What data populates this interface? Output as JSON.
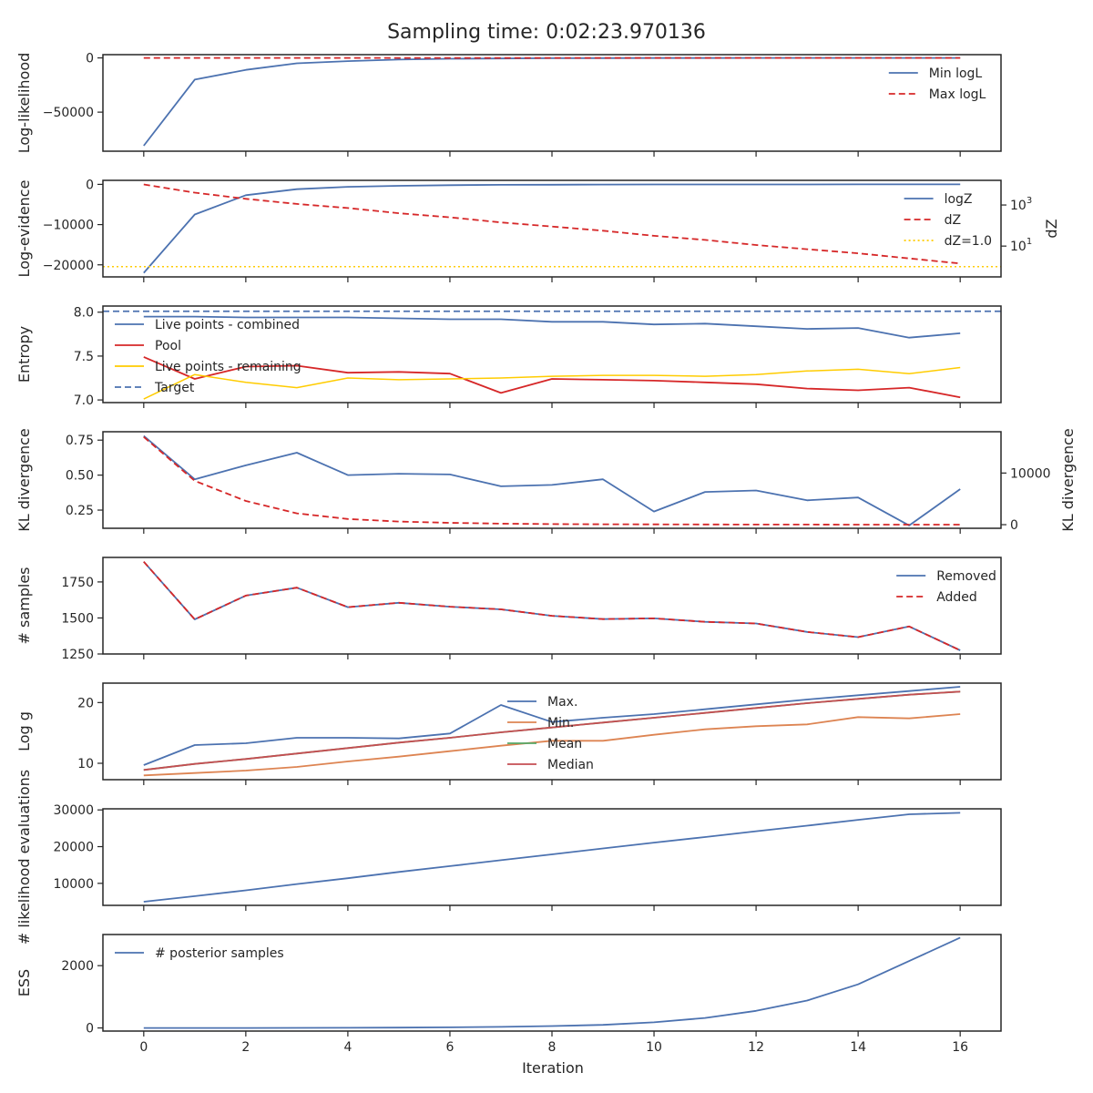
{
  "title": "Sampling time: 0:02:23.970136",
  "xlabel": "Iteration",
  "x_ticks": [
    0,
    2,
    4,
    6,
    8,
    10,
    12,
    14,
    16
  ],
  "colors": {
    "blue": "#4c72b0",
    "red": "#d62728",
    "gold": "#ffcc00",
    "orange": "#dd8452",
    "green": "#55a868",
    "brick": "#c44e52",
    "axis": "#262626"
  },
  "chart_data": [
    {
      "type": "line",
      "ylabel": "Log-likelihood",
      "ylim": [
        -86000,
        3000
      ],
      "yticks": [
        {
          "v": 0,
          "label": "0"
        },
        {
          "v": -50000,
          "label": "−50000"
        }
      ],
      "legend": "top-right",
      "series": [
        {
          "name": "Min logL",
          "color": "blue",
          "dash": "solid",
          "x": [
            0,
            1,
            2,
            3,
            4,
            5,
            6,
            7,
            8,
            9,
            10,
            11,
            12,
            13,
            14,
            15,
            16
          ],
          "values": [
            -81000,
            -20000,
            -11000,
            -5000,
            -3000,
            -1500,
            -800,
            -500,
            -300,
            -200,
            -120,
            -80,
            -50,
            -30,
            -20,
            -10,
            -5
          ]
        },
        {
          "name": "Max logL",
          "color": "red",
          "dash": "dashed",
          "x": [
            0,
            1,
            2,
            3,
            4,
            5,
            6,
            7,
            8,
            9,
            10,
            11,
            12,
            13,
            14,
            15,
            16
          ],
          "values": [
            0,
            0,
            0,
            0,
            0,
            0,
            0,
            0,
            0,
            0,
            0,
            0,
            0,
            0,
            0,
            0,
            0
          ]
        }
      ]
    },
    {
      "type": "line",
      "ylabel": "Log-evidence",
      "ylim": [
        -23000,
        1000
      ],
      "yticks": [
        {
          "v": 0,
          "label": "0"
        },
        {
          "v": -10000,
          "label": "−10000"
        },
        {
          "v": -20000,
          "label": "−20000"
        }
      ],
      "legend": "top-right",
      "series": [
        {
          "name": "logZ",
          "color": "blue",
          "dash": "solid",
          "x": [
            0,
            1,
            2,
            3,
            4,
            5,
            6,
            7,
            8,
            9,
            10,
            11,
            12,
            13,
            14,
            15,
            16
          ],
          "values": [
            -22000,
            -7500,
            -2700,
            -1200,
            -600,
            -350,
            -200,
            -120,
            -80,
            -50,
            -30,
            -20,
            -12,
            -8,
            -5,
            -3,
            -2
          ]
        }
      ],
      "right_axis": {
        "label": "dZ",
        "scale": "log",
        "log_range": [
          -0.5,
          4.2
        ],
        "yticks": [
          {
            "exp": 3,
            "base": "10",
            "sup": "3"
          },
          {
            "exp": 1,
            "base": "10",
            "sup": "1"
          }
        ],
        "series": [
          {
            "name": "dZ",
            "color": "red",
            "dash": "dashed",
            "x": [
              0,
              1,
              2,
              3,
              4,
              5,
              6,
              7,
              8,
              9,
              10,
              11,
              12,
              13,
              14,
              15,
              16
            ],
            "log_values": [
              4.0,
              3.6,
              3.3,
              3.05,
              2.85,
              2.6,
              2.4,
              2.15,
              1.95,
              1.75,
              1.5,
              1.3,
              1.05,
              0.85,
              0.65,
              0.4,
              0.15
            ]
          },
          {
            "name": "dZ=1.0",
            "color": "gold",
            "dash": "dotted",
            "hline_log": 0
          }
        ]
      }
    },
    {
      "type": "line",
      "ylabel": "Entropy",
      "ylim": [
        6.97,
        8.07
      ],
      "yticks": [
        {
          "v": 8.0,
          "label": "8.0"
        },
        {
          "v": 7.5,
          "label": "7.5"
        },
        {
          "v": 7.0,
          "label": "7.0"
        }
      ],
      "legend": "top-left",
      "series": [
        {
          "name": "Live points - combined",
          "color": "blue",
          "dash": "solid",
          "x": [
            0,
            1,
            2,
            3,
            4,
            5,
            6,
            7,
            8,
            9,
            10,
            11,
            12,
            13,
            14,
            15,
            16
          ],
          "values": [
            7.95,
            7.95,
            7.94,
            7.94,
            7.94,
            7.93,
            7.92,
            7.92,
            7.89,
            7.89,
            7.86,
            7.87,
            7.84,
            7.81,
            7.82,
            7.71,
            7.76
          ]
        },
        {
          "name": "Pool",
          "color": "red",
          "dash": "solid",
          "x": [
            0,
            1,
            2,
            3,
            4,
            5,
            6,
            7,
            8,
            9,
            10,
            11,
            12,
            13,
            14,
            15,
            16
          ],
          "values": [
            7.49,
            7.24,
            7.38,
            7.39,
            7.31,
            7.32,
            7.3,
            7.08,
            7.24,
            7.23,
            7.22,
            7.2,
            7.18,
            7.13,
            7.11,
            7.14,
            7.03
          ]
        },
        {
          "name": "Live points - remaining",
          "color": "gold",
          "dash": "solid",
          "x": [
            0,
            1,
            2,
            3,
            4,
            5,
            6,
            7,
            8,
            9,
            10,
            11,
            12,
            13,
            14,
            15,
            16
          ],
          "values": [
            7.01,
            7.29,
            7.2,
            7.14,
            7.25,
            7.23,
            7.24,
            7.25,
            7.27,
            7.28,
            7.28,
            7.27,
            7.29,
            7.33,
            7.35,
            7.3,
            7.37
          ]
        },
        {
          "name": "Target",
          "color": "blue",
          "dash": "dashed",
          "hline": 8.01
        }
      ]
    },
    {
      "type": "line",
      "ylabel": "KL divergence",
      "ylim": [
        0.12,
        0.81
      ],
      "yticks": [
        {
          "v": 0.75,
          "label": "0.75"
        },
        {
          "v": 0.5,
          "label": "0.50"
        },
        {
          "v": 0.25,
          "label": "0.25"
        }
      ],
      "series": [
        {
          "color": "blue",
          "dash": "solid",
          "x": [
            0,
            1,
            2,
            3,
            4,
            5,
            6,
            7,
            8,
            9,
            10,
            11,
            12,
            13,
            14,
            15,
            16
          ],
          "values": [
            0.78,
            0.47,
            0.57,
            0.66,
            0.5,
            0.51,
            0.505,
            0.42,
            0.43,
            0.47,
            0.24,
            0.38,
            0.39,
            0.32,
            0.34,
            0.14,
            0.4
          ]
        }
      ],
      "right_axis": {
        "label": "KL divergence",
        "scale": "linear",
        "ylim": [
          -700,
          18000
        ],
        "yticks": [
          {
            "v": 10000,
            "label": "10000"
          },
          {
            "v": 0,
            "label": "0"
          }
        ],
        "series": [
          {
            "color": "red",
            "dash": "dashed",
            "x": [
              0,
              1,
              2,
              3,
              4,
              5,
              6,
              7,
              8,
              9,
              10,
              11,
              12,
              13,
              14,
              15,
              16
            ],
            "values": [
              17000,
              8500,
              4600,
              2200,
              1100,
              600,
              350,
              200,
              120,
              80,
              60,
              40,
              30,
              20,
              10,
              5,
              2
            ]
          }
        ]
      }
    },
    {
      "type": "line",
      "ylabel": "# samples",
      "ylim": [
        1250,
        1920
      ],
      "yticks": [
        {
          "v": 1750,
          "label": "1750"
        },
        {
          "v": 1500,
          "label": "1500"
        },
        {
          "v": 1250,
          "label": "1250"
        }
      ],
      "legend": "top-right",
      "series": [
        {
          "name": "Removed",
          "color": "blue",
          "dash": "solid",
          "x": [
            0,
            1,
            2,
            3,
            4,
            5,
            6,
            7,
            8,
            9,
            10,
            11,
            12,
            13,
            14,
            15,
            16
          ],
          "values": [
            1890,
            1490,
            1655,
            1710,
            1575,
            1605,
            1578,
            1560,
            1515,
            1492,
            1497,
            1473,
            1462,
            1403,
            1367,
            1441,
            1275
          ]
        },
        {
          "name": "Added",
          "color": "red",
          "dash": "dashed",
          "x": [
            0,
            1,
            2,
            3,
            4,
            5,
            6,
            7,
            8,
            9,
            10,
            11,
            12,
            13,
            14,
            15,
            16
          ],
          "values": [
            1890,
            1490,
            1655,
            1710,
            1575,
            1605,
            1578,
            1560,
            1515,
            1492,
            1497,
            1473,
            1462,
            1403,
            1367,
            1441,
            1275
          ]
        }
      ]
    },
    {
      "type": "line",
      "ylabel": "Log g",
      "ylim": [
        7.3,
        23.2
      ],
      "yticks": [
        {
          "v": 20,
          "label": "20"
        },
        {
          "v": 10,
          "label": "10"
        }
      ],
      "legend": "top-center",
      "series": [
        {
          "name": "Max.",
          "color": "blue",
          "dash": "solid",
          "x": [
            0,
            1,
            2,
            3,
            4,
            5,
            6,
            7,
            8,
            9,
            10,
            11,
            12,
            13,
            14,
            15,
            16
          ],
          "values": [
            9.7,
            13.0,
            13.3,
            14.2,
            14.2,
            14.1,
            14.9,
            19.6,
            16.8,
            17.5,
            18.1,
            18.9,
            19.7,
            20.5,
            21.2,
            21.9,
            22.6
          ]
        },
        {
          "name": "Min.",
          "color": "orange",
          "dash": "solid",
          "x": [
            0,
            1,
            2,
            3,
            4,
            5,
            6,
            7,
            8,
            9,
            10,
            11,
            12,
            13,
            14,
            15,
            16
          ],
          "values": [
            8.0,
            8.4,
            8.8,
            9.4,
            10.3,
            11.1,
            12.0,
            12.9,
            13.7,
            13.7,
            14.7,
            15.6,
            16.1,
            16.4,
            17.6,
            17.4,
            18.1
          ]
        },
        {
          "name": "Mean",
          "color": "green",
          "dash": "solid",
          "x": [
            0,
            1,
            2,
            3,
            4,
            5,
            6,
            7,
            8,
            9,
            10,
            11,
            12,
            13,
            14,
            15,
            16
          ],
          "values": [
            8.9,
            9.9,
            10.7,
            11.6,
            12.5,
            13.4,
            14.2,
            15.1,
            15.9,
            16.7,
            17.5,
            18.3,
            19.1,
            19.9,
            20.6,
            21.3,
            21.8
          ]
        },
        {
          "name": "Median",
          "color": "brick",
          "dash": "solid",
          "x": [
            0,
            1,
            2,
            3,
            4,
            5,
            6,
            7,
            8,
            9,
            10,
            11,
            12,
            13,
            14,
            15,
            16
          ],
          "values": [
            8.9,
            9.9,
            10.7,
            11.6,
            12.5,
            13.4,
            14.2,
            15.1,
            15.9,
            16.7,
            17.5,
            18.3,
            19.1,
            19.9,
            20.6,
            21.3,
            21.8
          ]
        }
      ]
    },
    {
      "type": "line",
      "ylabel": "# likelihood evaluations",
      "ylim": [
        4000,
        30300
      ],
      "yticks": [
        {
          "v": 30000,
          "label": "30000"
        },
        {
          "v": 20000,
          "label": "20000"
        },
        {
          "v": 10000,
          "label": "10000"
        }
      ],
      "series": [
        {
          "color": "blue",
          "dash": "solid",
          "x": [
            0,
            1,
            2,
            3,
            4,
            5,
            6,
            7,
            8,
            9,
            10,
            11,
            12,
            13,
            14,
            15,
            16
          ],
          "values": [
            5000,
            6500,
            8100,
            9800,
            11400,
            13100,
            14700,
            16300,
            17900,
            19500,
            21100,
            22600,
            24200,
            25700,
            27300,
            28800,
            29200
          ]
        }
      ]
    },
    {
      "type": "line",
      "ylabel": "ESS",
      "ylim": [
        -100,
        3000
      ],
      "yticks": [
        {
          "v": 2000,
          "label": "2000"
        },
        {
          "v": 0,
          "label": "0"
        }
      ],
      "legend": "top-left",
      "series": [
        {
          "name": "# posterior samples",
          "color": "blue",
          "dash": "solid",
          "x": [
            0,
            1,
            2,
            3,
            4,
            5,
            6,
            7,
            8,
            9,
            10,
            11,
            12,
            13,
            14,
            15,
            16
          ],
          "values": [
            0,
            0,
            0,
            2,
            5,
            10,
            20,
            35,
            60,
            100,
            180,
            320,
            550,
            880,
            1400,
            2150,
            2900
          ]
        }
      ]
    }
  ]
}
